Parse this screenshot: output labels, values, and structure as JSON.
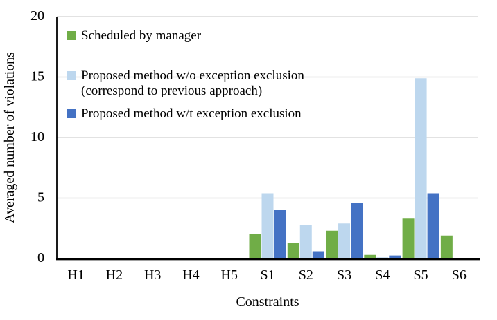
{
  "chart_data": {
    "type": "bar",
    "title": "",
    "xlabel": "Constraints",
    "ylabel": "Averaged number of violations",
    "ylim": [
      0,
      20
    ],
    "yticks": [
      0,
      5,
      10,
      15,
      20
    ],
    "grid": "horizontal",
    "legend_position": "top-left-inside",
    "categories": [
      "H1",
      "H2",
      "H3",
      "H4",
      "H5",
      "S1",
      "S2",
      "S3",
      "S4",
      "S5",
      "S6"
    ],
    "series": [
      {
        "name": "Scheduled by manager",
        "label": "Scheduled by manager",
        "color": "#70AD47",
        "values": [
          0,
          0,
          0,
          0,
          0,
          2.0,
          1.3,
          2.3,
          0.3,
          3.3,
          1.9
        ]
      },
      {
        "name": "Proposed method w/o exception exclusion (correspond to previous approach)",
        "label": "Proposed method w/o exception exclusion",
        "label2": "(correspond to previous approach)",
        "color": "#BDD7EE",
        "values": [
          0,
          0,
          0,
          0,
          0,
          5.4,
          2.8,
          2.9,
          0.1,
          14.9,
          0
        ]
      },
      {
        "name": "Proposed method w/t exception exclusion",
        "label": "Proposed method w/t exception exclusion",
        "color": "#4472C4",
        "values": [
          0,
          0,
          0,
          0,
          0,
          4.0,
          0.6,
          4.6,
          0.25,
          5.4,
          0
        ]
      }
    ],
    "colors": {
      "gridline": "#D9D9D9",
      "axis": "#000000",
      "text": "#000000",
      "background": "#FFFFFF"
    }
  }
}
